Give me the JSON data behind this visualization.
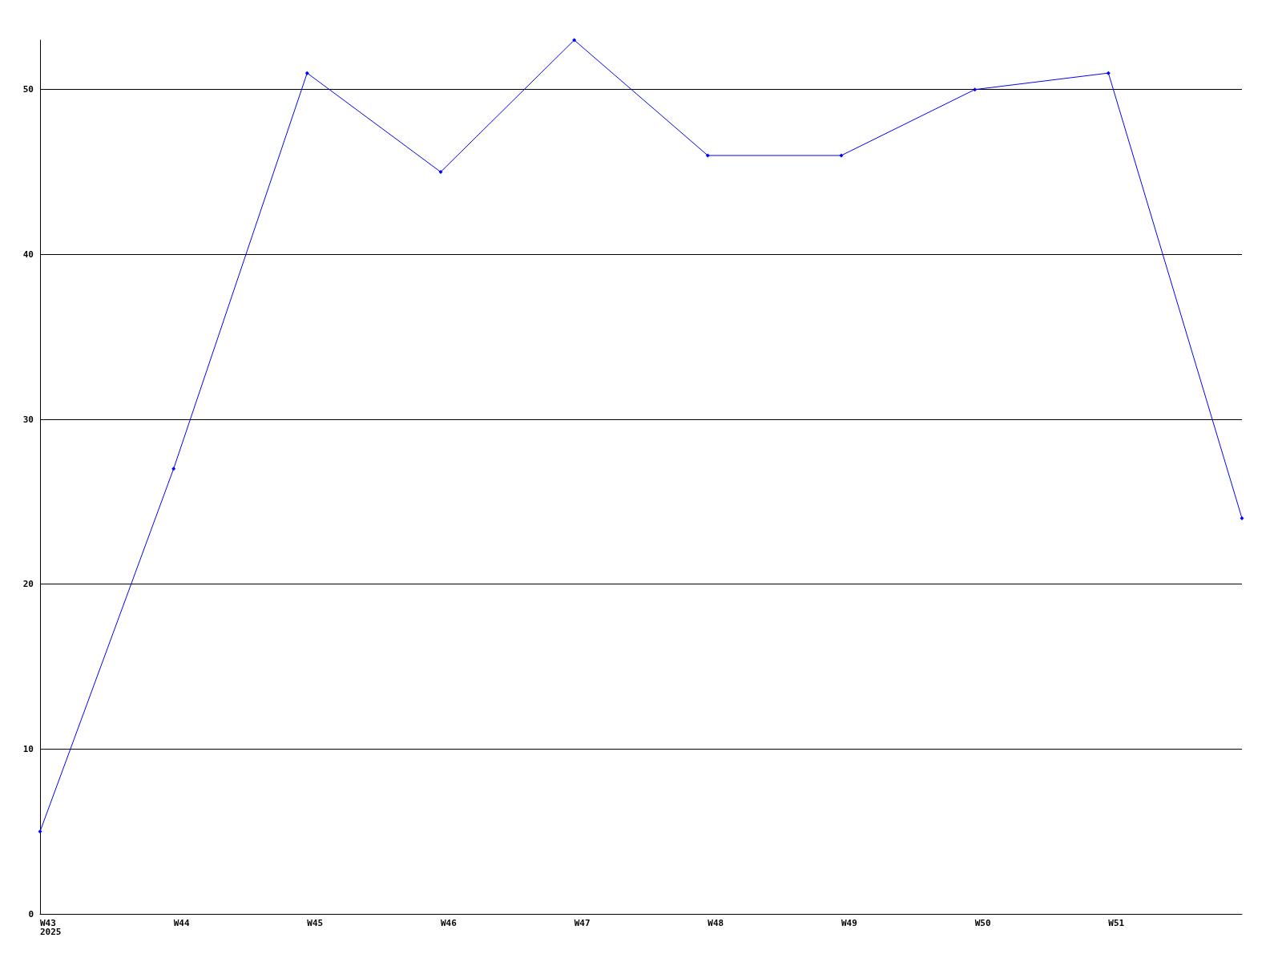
{
  "chart_data": {
    "type": "line",
    "categories": [
      "W43\n2025",
      "W44",
      "W45",
      "W46",
      "W47",
      "W48",
      "W49",
      "W50",
      "W51",
      null
    ],
    "series": [
      {
        "color": "#0000ff",
        "values": [
          5,
          27,
          51,
          45,
          53,
          46,
          46,
          50,
          51,
          24
        ]
      }
    ],
    "ylim": [
      0,
      53
    ],
    "yticks": [
      0,
      10,
      20,
      30,
      40,
      50
    ],
    "grid": "y",
    "marker": "diamond",
    "line_style": "solid"
  }
}
